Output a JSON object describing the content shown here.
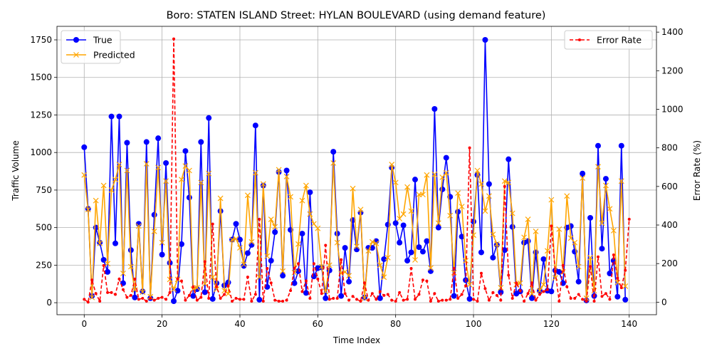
{
  "chart_data": {
    "type": "line",
    "title": "Boro: STATEN ISLAND Street: HYLAN BOULEVARD (using demand feature)",
    "xlabel": "Time Index",
    "ylabel": "Traffic Volume",
    "y2label": "Error Rate (%)",
    "xlim": [
      -7,
      147
    ],
    "ylim": [
      -80,
      1840
    ],
    "y2lim": [
      -65,
      1430
    ],
    "x_ticks": [
      0,
      20,
      40,
      60,
      80,
      100,
      120,
      140
    ],
    "y_ticks": [
      0,
      250,
      500,
      750,
      1000,
      1250,
      1500,
      1750
    ],
    "y2_ticks": [
      0,
      200,
      400,
      600,
      800,
      1000,
      1200,
      1400
    ],
    "grid": true,
    "legend_left": [
      "True",
      "Predicted"
    ],
    "legend_right": [
      "Error Rate"
    ],
    "colors": {
      "true": "#0000ff",
      "predicted": "#ffa500",
      "error": "#ff0000"
    },
    "series": [
      {
        "name": "True",
        "values": [
          1035,
          625,
          45,
          500,
          400,
          285,
          205,
          1240,
          395,
          1240,
          130,
          1065,
          350,
          35,
          525,
          75,
          1070,
          30,
          585,
          1095,
          320,
          930,
          265,
          10,
          80,
          390,
          1010,
          700,
          45,
          90,
          1070,
          70,
          1230,
          25,
          130,
          610,
          115,
          135,
          420,
          525,
          420,
          245,
          330,
          385,
          1180,
          20,
          780,
          105,
          280,
          470,
          870,
          180,
          880,
          485,
          130,
          210,
          460,
          65,
          735,
          175,
          230,
          235,
          30,
          215,
          1005,
          460,
          45,
          365,
          140,
          550,
          355,
          600,
          35,
          365,
          365,
          410,
          30,
          290,
          520,
          900,
          530,
          400,
          515,
          280,
          335,
          820,
          370,
          340,
          410,
          210,
          1290,
          500,
          755,
          965,
          705,
          45,
          605,
          440,
          150,
          25,
          540,
          850,
          335,
          1750,
          790,
          300,
          385,
          70,
          350,
          955,
          505,
          60,
          75,
          400,
          410,
          30,
          335,
          80,
          290,
          80,
          75,
          215,
          205,
          130,
          500,
          510,
          340,
          140,
          860,
          15,
          565,
          45,
          1045,
          360,
          825,
          195,
          280,
          40,
          1045,
          20
        ]
      },
      {
        "name": "Predicted",
        "values": [
          850,
          620,
          35,
          680,
          395,
          780,
          260,
          750,
          820,
          920,
          195,
          880,
          240,
          85,
          510,
          70,
          925,
          40,
          475,
          900,
          400,
          810,
          155,
          90,
          155,
          820,
          910,
          880,
          90,
          100,
          800,
          125,
          860,
          170,
          90,
          695,
          80,
          60,
          420,
          425,
          365,
          255,
          715,
          405,
          865,
          170,
          790,
          310,
          555,
          505,
          885,
          210,
          840,
          705,
          200,
          390,
          680,
          780,
          590,
          525,
          495,
          240,
          75,
          250,
          930,
          400,
          195,
          205,
          180,
          760,
          375,
          620,
          30,
          345,
          405,
          395,
          250,
          170,
          300,
          920,
          800,
          560,
          590,
          770,
          610,
          285,
          720,
          720,
          850,
          230,
          855,
          530,
          835,
          865,
          580,
          200,
          730,
          640,
          280,
          120,
          450,
          880,
          790,
          610,
          710,
          455,
          390,
          100,
          810,
          800,
          595,
          120,
          130,
          435,
          555,
          60,
          475,
          80,
          120,
          345,
          685,
          165,
          490,
          205,
          710,
          430,
          400,
          240,
          830,
          30,
          300,
          80,
          905,
          530,
          780,
          625,
          480,
          135,
          810,
          110
        ]
      },
      {
        "name": "Error Rate",
        "values": [
          15,
          0,
          115,
          45,
          5,
          190,
          50,
          50,
          40,
          120,
          65,
          25,
          35,
          120,
          15,
          20,
          5,
          20,
          10,
          20,
          25,
          15,
          50,
          1365,
          120,
          110,
          10,
          35,
          80,
          10,
          25,
          210,
          20,
          405,
          80,
          20,
          40,
          85,
          5,
          20,
          15,
          15,
          130,
          5,
          40,
          430,
          5,
          175,
          100,
          10,
          5,
          5,
          10,
          60,
          175,
          200,
          55,
          110,
          20,
          200,
          120,
          45,
          295,
          15,
          20,
          20,
          220,
          45,
          10,
          30,
          15,
          5,
          100,
          10,
          45,
          15,
          55,
          35,
          40,
          10,
          5,
          50,
          10,
          15,
          175,
          15,
          40,
          115,
          110,
          5,
          45,
          5,
          10,
          10,
          15,
          175,
          20,
          40,
          85,
          800,
          15,
          5,
          150,
          70,
          10,
          50,
          35,
          10,
          600,
          140,
          20,
          100,
          60,
          5,
          45,
          100,
          10,
          40,
          55,
          65,
          395,
          160,
          5,
          190,
          80,
          20,
          20,
          40,
          15,
          5,
          185,
          5,
          235,
          30,
          45,
          15,
          245,
          125,
          75,
          165,
          430
        ]
      }
    ]
  }
}
